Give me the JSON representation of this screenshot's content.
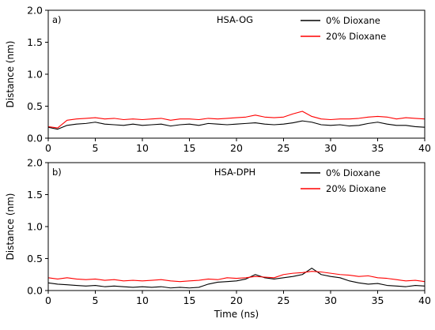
{
  "chart_data": [
    {
      "type": "line",
      "panel_label": "a)",
      "title": "HSA-OG",
      "xlabel": "",
      "ylabel": "Distance (nm)",
      "xlim": [
        0,
        40
      ],
      "ylim": [
        0,
        2.0
      ],
      "xticks": [
        "0",
        "5",
        "10",
        "15",
        "20",
        "25",
        "30",
        "35",
        "40"
      ],
      "yticks": [
        "0.0",
        "0.5",
        "1.0",
        "1.5",
        "2.0"
      ],
      "legend_position": "top-right",
      "series": [
        {
          "name": "0% Dioxane",
          "color": "#000000",
          "x": [
            0,
            1,
            2,
            3,
            4,
            5,
            6,
            7,
            8,
            9,
            10,
            11,
            12,
            13,
            14,
            15,
            16,
            17,
            18,
            19,
            20,
            21,
            22,
            23,
            24,
            25,
            26,
            27,
            28,
            29,
            30,
            31,
            32,
            33,
            34,
            35,
            36,
            37,
            38,
            39,
            40
          ],
          "y": [
            0.17,
            0.14,
            0.2,
            0.22,
            0.23,
            0.25,
            0.22,
            0.21,
            0.2,
            0.22,
            0.2,
            0.21,
            0.22,
            0.19,
            0.21,
            0.22,
            0.2,
            0.23,
            0.22,
            0.21,
            0.22,
            0.23,
            0.24,
            0.22,
            0.21,
            0.22,
            0.24,
            0.27,
            0.25,
            0.21,
            0.2,
            0.21,
            0.19,
            0.2,
            0.23,
            0.25,
            0.22,
            0.2,
            0.2,
            0.18,
            0.17
          ]
        },
        {
          "name": "20% Dioxane",
          "color": "#ff0000",
          "x": [
            0,
            1,
            2,
            3,
            4,
            5,
            6,
            7,
            8,
            9,
            10,
            11,
            12,
            13,
            14,
            15,
            16,
            17,
            18,
            19,
            20,
            21,
            22,
            23,
            24,
            25,
            26,
            27,
            28,
            29,
            30,
            31,
            32,
            33,
            34,
            35,
            36,
            37,
            38,
            39,
            40
          ],
          "y": [
            0.18,
            0.16,
            0.28,
            0.3,
            0.31,
            0.32,
            0.3,
            0.31,
            0.29,
            0.3,
            0.29,
            0.3,
            0.31,
            0.28,
            0.3,
            0.3,
            0.29,
            0.31,
            0.3,
            0.31,
            0.32,
            0.33,
            0.36,
            0.33,
            0.32,
            0.33,
            0.38,
            0.42,
            0.34,
            0.3,
            0.29,
            0.3,
            0.3,
            0.31,
            0.33,
            0.34,
            0.33,
            0.3,
            0.32,
            0.31,
            0.3
          ]
        }
      ]
    },
    {
      "type": "line",
      "panel_label": "b)",
      "title": "HSA-DPH",
      "xlabel": "Time (ns)",
      "ylabel": "Distance (nm)",
      "xlim": [
        0,
        40
      ],
      "ylim": [
        0,
        2.0
      ],
      "xticks": [
        "0",
        "5",
        "10",
        "15",
        "20",
        "25",
        "30",
        "35",
        "40"
      ],
      "yticks": [
        "0.0",
        "0.5",
        "1.0",
        "1.5",
        "2.0"
      ],
      "legend_position": "top-right",
      "series": [
        {
          "name": "0% Dioxane",
          "color": "#000000",
          "x": [
            0,
            1,
            2,
            3,
            4,
            5,
            6,
            7,
            8,
            9,
            10,
            11,
            12,
            13,
            14,
            15,
            16,
            17,
            18,
            19,
            20,
            21,
            22,
            23,
            24,
            25,
            26,
            27,
            28,
            29,
            30,
            31,
            32,
            33,
            34,
            35,
            36,
            37,
            38,
            39,
            40
          ],
          "y": [
            0.12,
            0.1,
            0.09,
            0.08,
            0.07,
            0.08,
            0.06,
            0.07,
            0.06,
            0.05,
            0.06,
            0.05,
            0.06,
            0.04,
            0.05,
            0.04,
            0.05,
            0.1,
            0.13,
            0.14,
            0.15,
            0.18,
            0.25,
            0.2,
            0.18,
            0.2,
            0.22,
            0.25,
            0.35,
            0.25,
            0.22,
            0.2,
            0.15,
            0.12,
            0.1,
            0.11,
            0.08,
            0.07,
            0.06,
            0.08,
            0.07
          ]
        },
        {
          "name": "20% Dioxane",
          "color": "#ff0000",
          "x": [
            0,
            1,
            2,
            3,
            4,
            5,
            6,
            7,
            8,
            9,
            10,
            11,
            12,
            13,
            14,
            15,
            16,
            17,
            18,
            19,
            20,
            21,
            22,
            23,
            24,
            25,
            26,
            27,
            28,
            29,
            30,
            31,
            32,
            33,
            34,
            35,
            36,
            37,
            38,
            39,
            40
          ],
          "y": [
            0.2,
            0.18,
            0.2,
            0.18,
            0.17,
            0.18,
            0.16,
            0.17,
            0.15,
            0.16,
            0.15,
            0.16,
            0.17,
            0.15,
            0.14,
            0.15,
            0.16,
            0.18,
            0.17,
            0.2,
            0.19,
            0.2,
            0.22,
            0.21,
            0.2,
            0.25,
            0.27,
            0.28,
            0.3,
            0.29,
            0.27,
            0.25,
            0.24,
            0.22,
            0.23,
            0.2,
            0.19,
            0.17,
            0.15,
            0.16,
            0.14
          ]
        }
      ]
    }
  ]
}
